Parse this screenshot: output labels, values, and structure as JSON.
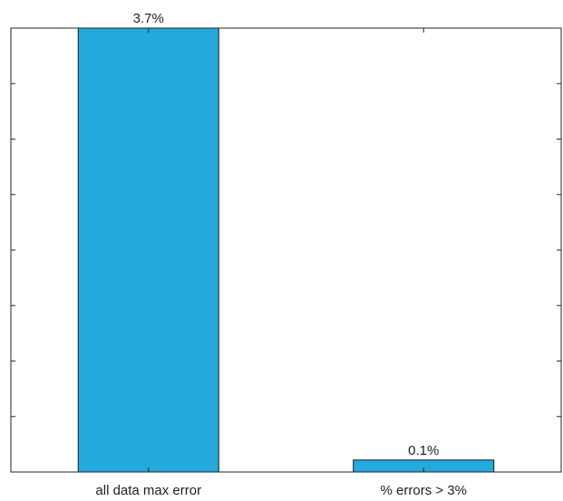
{
  "chart_data": {
    "type": "bar",
    "categories": [
      "all data max error",
      "% errors > 3%"
    ],
    "values": [
      3.7,
      0.1
    ],
    "data_labels": [
      "3.7%",
      "0.1%"
    ],
    "ylim": [
      0,
      3.7
    ],
    "grid": false,
    "bar_color": "#23a9dc",
    "axis_color": "#262626",
    "y_tick_count": 9
  }
}
